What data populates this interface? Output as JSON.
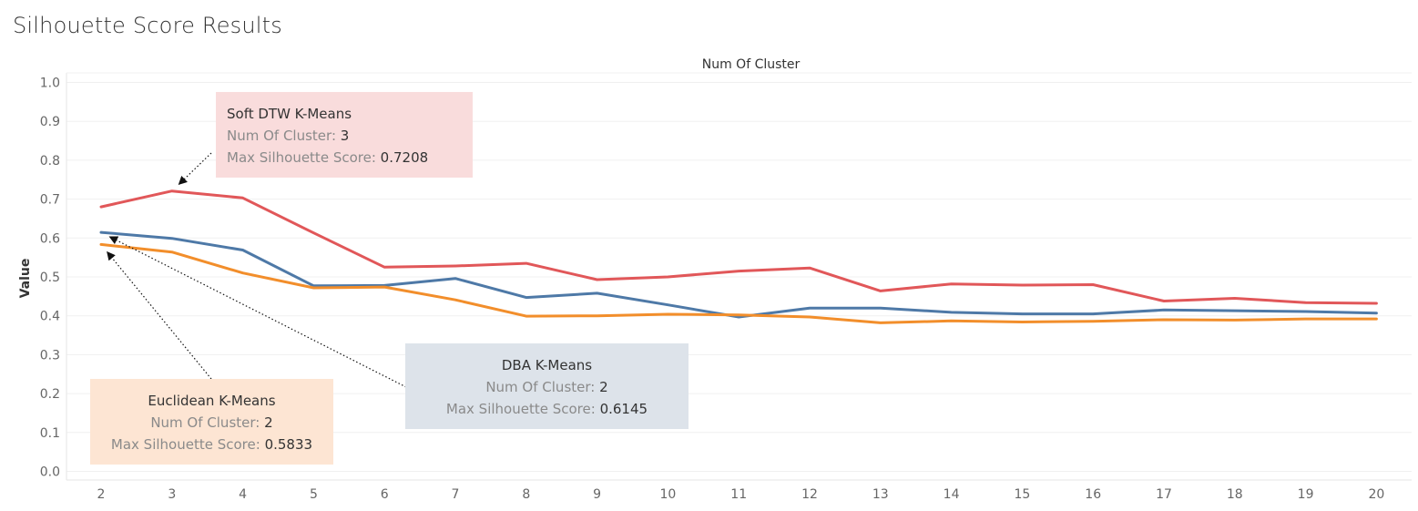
{
  "page": {
    "title": "Silhouette Score Results"
  },
  "chart_data": {
    "type": "line",
    "title": "Num Of Cluster",
    "xlabel": "",
    "ylabel": "Value",
    "x": [
      2,
      3,
      4,
      5,
      6,
      7,
      8,
      9,
      10,
      11,
      12,
      13,
      14,
      15,
      16,
      17,
      18,
      19,
      20
    ],
    "ylim": [
      0.0,
      1.0
    ],
    "yticks": [
      "0.0",
      "0.1",
      "0.2",
      "0.3",
      "0.4",
      "0.5",
      "0.6",
      "0.7",
      "0.8",
      "0.9",
      "1.0"
    ],
    "grid": true,
    "series": [
      {
        "name": "Soft DTW K-Means",
        "color": "#e15759",
        "values": [
          0.68,
          0.7208,
          0.703,
          0.613,
          0.525,
          0.528,
          0.535,
          0.493,
          0.5,
          0.515,
          0.523,
          0.464,
          0.482,
          0.479,
          0.48,
          0.438,
          0.445,
          0.434,
          0.432
        ]
      },
      {
        "name": "DBA K-Means",
        "color": "#4e79a7",
        "values": [
          0.6145,
          0.599,
          0.569,
          0.477,
          0.478,
          0.496,
          0.447,
          0.458,
          0.428,
          0.397,
          0.42,
          0.42,
          0.409,
          0.405,
          0.405,
          0.415,
          0.413,
          0.411,
          0.407
        ]
      },
      {
        "name": "Euclidean K-Means",
        "color": "#f28e2b",
        "values": [
          0.5833,
          0.564,
          0.51,
          0.472,
          0.474,
          0.441,
          0.399,
          0.4,
          0.404,
          0.402,
          0.397,
          0.382,
          0.387,
          0.384,
          0.386,
          0.39,
          0.389,
          0.392,
          0.392
        ]
      }
    ],
    "annotations": [
      {
        "series": "Soft DTW K-Means",
        "title": "Soft DTW K-Means",
        "cluster_label": "Num Of Cluster:",
        "cluster_value": "3",
        "score_label": "Max Silhouette Score:",
        "score_value": "0.7208",
        "bg": "#f9dcdc",
        "target_x": 3,
        "target_y": 0.7208
      },
      {
        "series": "DBA K-Means",
        "title": "DBA K-Means",
        "cluster_label": "Num Of Cluster:",
        "cluster_value": "2",
        "score_label": "Max Silhouette Score:",
        "score_value": "0.6145",
        "bg": "#dde3ea",
        "target_x": 2,
        "target_y": 0.6145
      },
      {
        "series": "Euclidean K-Means",
        "title": "Euclidean K-Means",
        "cluster_label": "Num Of Cluster:",
        "cluster_value": "2",
        "score_label": "Max Silhouette Score:",
        "score_value": "0.5833",
        "bg": "#fde5d3",
        "target_x": 2,
        "target_y": 0.5833
      }
    ]
  }
}
